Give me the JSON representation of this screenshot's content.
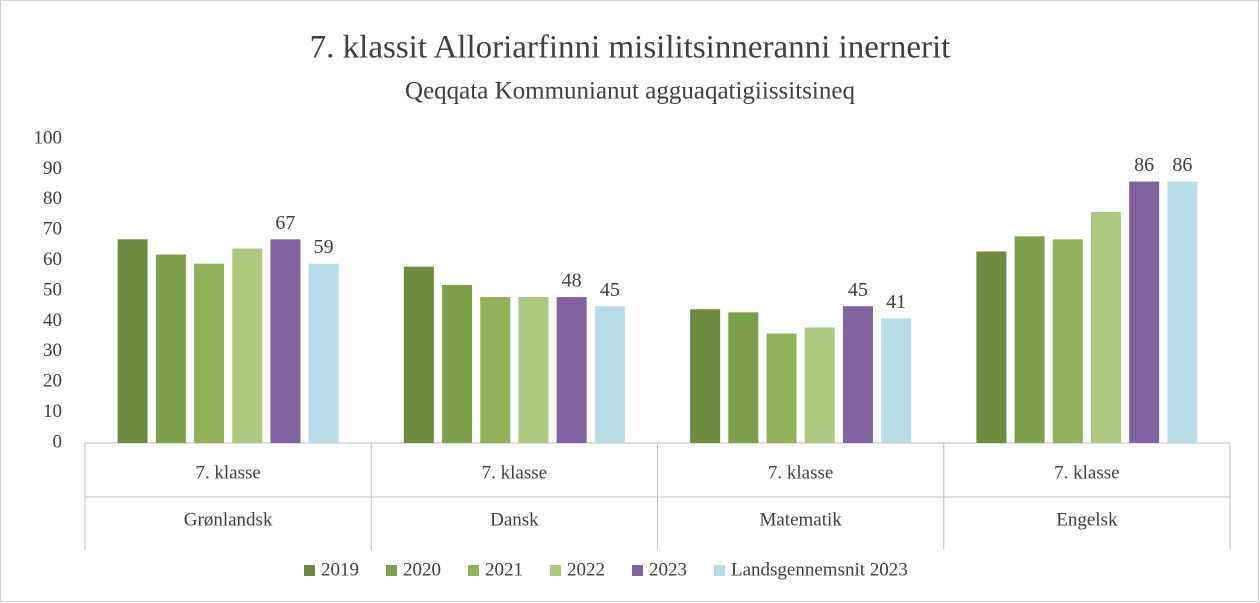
{
  "chart_data": {
    "type": "bar",
    "title": "7. klassit Alloriarfinni misilitsinneranni inernerit",
    "subtitle": "Qeqqata Kommunianut agguaqatigiissitsineq",
    "categories": [
      "Grønlandsk",
      "Dansk",
      "Matematik",
      "Engelsk"
    ],
    "subcategories": [
      "7. klasse",
      "7. klasse",
      "7. klasse",
      "7. klasse"
    ],
    "series": [
      {
        "name": "2019",
        "color": "#6f8b3e",
        "values": [
          67,
          58,
          44,
          63
        ],
        "show_labels": false
      },
      {
        "name": "2020",
        "color": "#7f9f4a",
        "values": [
          62,
          52,
          43,
          68
        ],
        "show_labels": false
      },
      {
        "name": "2021",
        "color": "#93b05a",
        "values": [
          59,
          48,
          36,
          67
        ],
        "show_labels": false
      },
      {
        "name": "2022",
        "color": "#aec87f",
        "values": [
          64,
          48,
          38,
          76
        ],
        "show_labels": false
      },
      {
        "name": "2023",
        "color": "#8064a2",
        "values": [
          67,
          48,
          45,
          86
        ],
        "show_labels": true
      },
      {
        "name": "Landsgennemsnit 2023",
        "color": "#b7dde8",
        "values": [
          59,
          45,
          41,
          86
        ],
        "show_labels": true
      }
    ],
    "ylim": [
      0,
      100
    ],
    "yticks": [
      0,
      10,
      20,
      30,
      40,
      50,
      60,
      70,
      80,
      90,
      100
    ],
    "grid": false,
    "legend": "bottom"
  }
}
